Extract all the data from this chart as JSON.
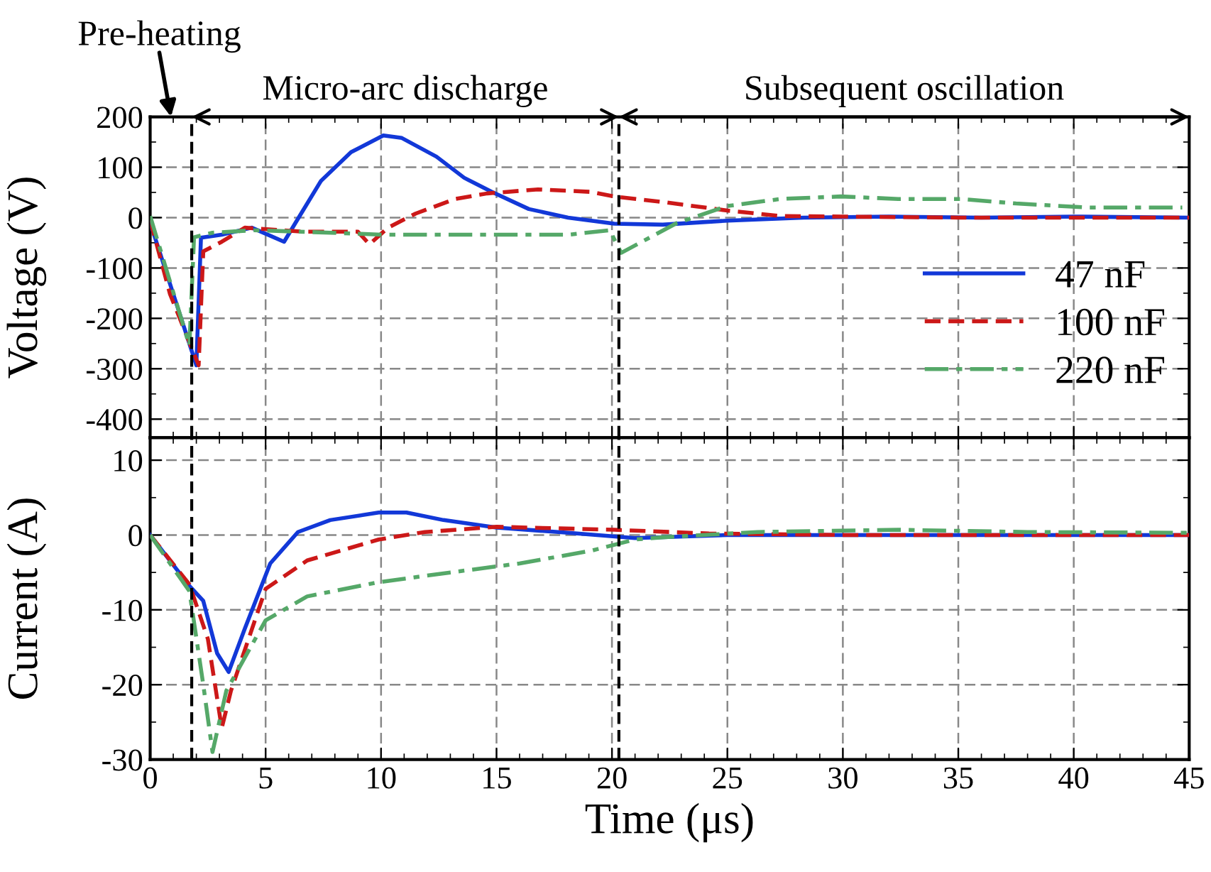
{
  "chart_data": [
    {
      "type": "line",
      "ylabel": "Voltage (V)",
      "xlim": [
        0,
        45
      ],
      "xticks": [
        0,
        5,
        10,
        15,
        20,
        25,
        30,
        35,
        40,
        45
      ],
      "ylim": [
        -437,
        200
      ],
      "yticks": [
        -400,
        -300,
        -200,
        -100,
        0,
        100,
        200
      ],
      "tick_labels": "y",
      "grid": true,
      "legend": "right",
      "marker": "none",
      "series": [
        {
          "name": "47 nF",
          "color": "#1238d8",
          "line_style": "solid",
          "x": [
            0,
            2.0,
            2.2,
            3.1,
            4.4,
            5.8,
            6.3,
            7.4,
            8.7,
            10.1,
            10.9,
            12.4,
            13.6,
            14.8,
            16.4,
            18.1,
            20.1,
            22.2,
            25,
            28.3,
            32,
            36,
            40,
            45
          ],
          "values": [
            -10,
            -293,
            -40,
            -34,
            -20,
            -48,
            -10,
            73,
            130,
            163,
            158,
            121,
            79,
            51,
            17,
            0,
            -12,
            -14,
            -6,
            0,
            2,
            0,
            2,
            0
          ]
        },
        {
          "name": "100 nF",
          "color": "#cc1818",
          "line_style": "dashed",
          "x": [
            0,
            0.86,
            2.1,
            2.3,
            3.1,
            4.1,
            6.6,
            9.0,
            9.5,
            10.3,
            11.5,
            13.2,
            14.6,
            16.8,
            19.1,
            20.1,
            22.2,
            25,
            27.3,
            30,
            35,
            40,
            45
          ],
          "values": [
            -5,
            -152,
            -293,
            -67,
            -48,
            -20,
            -28,
            -28,
            -53,
            -20,
            8,
            37,
            48,
            56,
            51,
            42,
            31,
            14,
            3,
            2,
            0,
            0,
            0
          ]
        },
        {
          "name": "220 nF",
          "color": "#55a868",
          "line_style": "dashdot",
          "x": [
            0,
            1.7,
            1.9,
            2.7,
            4.5,
            7.8,
            10.1,
            14.8,
            18.1,
            19.9,
            20.4,
            22.8,
            25,
            27.3,
            29.9,
            32.4,
            35.1,
            37.5,
            40.6,
            44.7
          ],
          "values": [
            3,
            -254,
            -39,
            -30,
            -25,
            -30,
            -34,
            -34,
            -34,
            -25,
            -70,
            -11,
            23,
            37,
            42,
            37,
            37,
            28,
            20,
            20
          ]
        }
      ],
      "ref_lines": [
        {
          "axis": "x",
          "value": 1.8,
          "label": null,
          "color": "#000000",
          "line_style": "dashed"
        },
        {
          "axis": "x",
          "value": 20.3,
          "label": null,
          "color": "#000000",
          "line_style": "dashed"
        }
      ],
      "annotations": [
        "Pre-heating",
        "Micro-arc discharge",
        "Subsequent oscillation"
      ]
    },
    {
      "type": "line",
      "xlabel": "Time (μs)",
      "ylabel": "Current (A)",
      "xlim": [
        0,
        45
      ],
      "xticks": [
        0,
        5,
        10,
        15,
        20,
        25,
        30,
        35,
        40,
        45
      ],
      "ylim": [
        -30,
        13
      ],
      "yticks": [
        -30,
        -20,
        -10,
        0,
        10
      ],
      "grid": true,
      "marker": "none",
      "series": [
        {
          "color": "#1238d8",
          "line_style": "solid",
          "x": [
            0,
            1.7,
            2.3,
            2.9,
            3.4,
            4.1,
            5.2,
            6.4,
            7.8,
            9.9,
            11.1,
            12.7,
            15,
            18.1,
            21,
            25,
            30,
            35,
            40,
            45
          ],
          "values": [
            0,
            -6.8,
            -8.8,
            -15.8,
            -18.3,
            -12.5,
            -3.8,
            0.4,
            2,
            3,
            3,
            2,
            1,
            0.3,
            -0.4,
            0,
            0,
            0,
            0,
            0
          ]
        },
        {
          "color": "#cc1818",
          "line_style": "dashed",
          "x": [
            0,
            1.7,
            2.5,
            3.1,
            3.5,
            5.0,
            6.8,
            9.9,
            11.9,
            15,
            20.1,
            24.2,
            30,
            35,
            40,
            45
          ],
          "values": [
            0,
            -6.6,
            -13.9,
            -25.8,
            -20.8,
            -7.2,
            -3.4,
            -0.6,
            0.4,
            1.1,
            0.7,
            0.2,
            0,
            0,
            0,
            0
          ]
        },
        {
          "color": "#55a868",
          "line_style": "dashdot",
          "x": [
            0,
            1.7,
            2.3,
            2.7,
            3.3,
            5,
            6.8,
            9.9,
            13,
            16,
            19.1,
            21,
            22.2,
            26.3,
            32.4,
            38,
            45
          ],
          "values": [
            0,
            -7.5,
            -20,
            -29,
            -20.8,
            -11.4,
            -8.2,
            -6.3,
            -5,
            -3.8,
            -2.1,
            -0.6,
            -0.3,
            0.4,
            0.7,
            0.4,
            0.3
          ]
        }
      ],
      "ref_lines": [
        {
          "axis": "x",
          "value": 1.8,
          "label": null,
          "color": "#000000",
          "line_style": "dashed"
        },
        {
          "axis": "x",
          "value": 20.3,
          "label": null,
          "color": "#000000",
          "line_style": "dashed"
        }
      ]
    }
  ]
}
